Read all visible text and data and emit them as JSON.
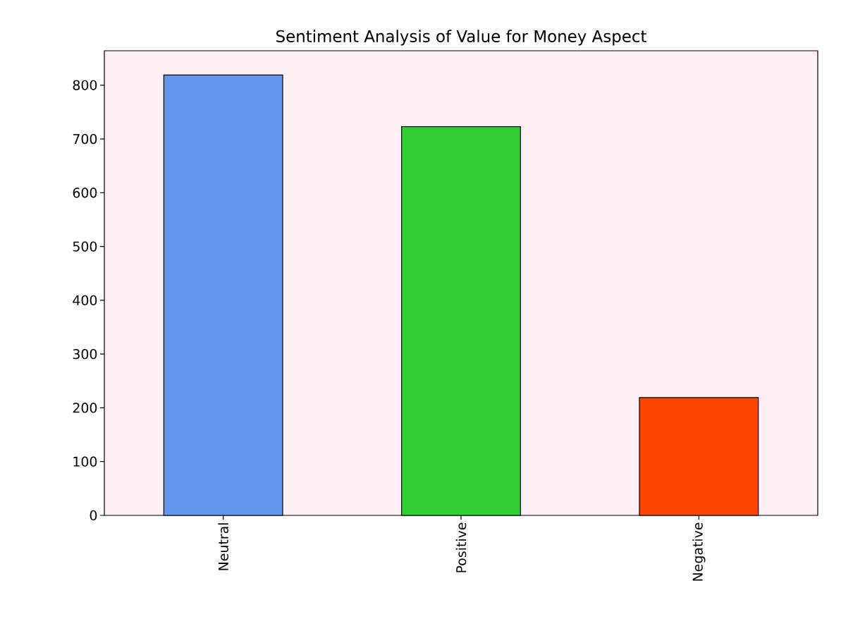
{
  "chart_data": {
    "type": "bar",
    "title": "Sentiment Analysis of Value for Money Aspect",
    "categories": [
      "Neutral",
      "Positive",
      "Negative"
    ],
    "values": [
      819,
      723,
      219
    ],
    "colors": [
      "#6495ed",
      "#32cd32",
      "#ff4500"
    ],
    "ylim": [
      0,
      864
    ],
    "yticks": [
      0,
      100,
      200,
      300,
      400,
      500,
      600,
      700,
      800
    ],
    "grid": false
  }
}
